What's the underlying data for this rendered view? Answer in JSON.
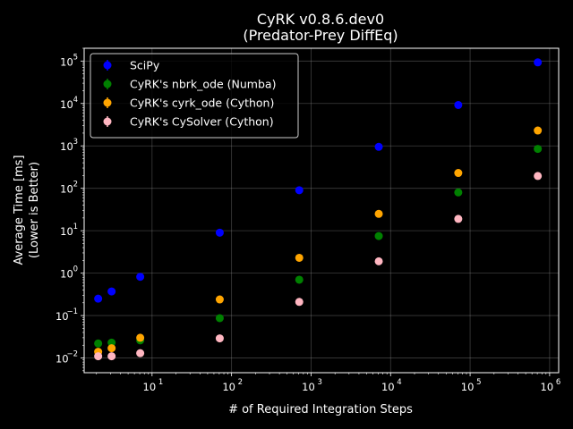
{
  "chart_data": {
    "type": "scatter",
    "title": "CyRK v0.8.6.dev0",
    "subtitle": "(Predator-Prey DiffEq)",
    "xlabel": "# of Required Integration Steps",
    "ylabel_line1": "Average Time [ms]",
    "ylabel_line2": "(Lower is Better)",
    "x_scale": "log",
    "y_scale": "log",
    "xlim": [
      1.4,
      1300000
    ],
    "ylim": [
      0.0045,
      200000
    ],
    "x_tick_exponents": [
      1,
      2,
      3,
      4,
      5,
      6
    ],
    "y_tick_exponents": [
      -2,
      -1,
      0,
      1,
      2,
      3,
      4,
      5
    ],
    "tick_base": "10",
    "grid": true,
    "legend_position": "top-left",
    "background": "#000000",
    "foreground": "#ffffff",
    "series": [
      {
        "name": "SciPy",
        "color": "#0000ff",
        "x": [
          2.1,
          3.1,
          7.1,
          71,
          710,
          7100,
          71000,
          710000
        ],
        "y": [
          0.25,
          0.37,
          0.82,
          9.0,
          90,
          950,
          9200,
          93000
        ]
      },
      {
        "name": "CyRK's nbrk_ode (Numba)",
        "color": "#008000",
        "x": [
          2.1,
          3.1,
          7.1,
          71,
          710,
          7100,
          71000,
          710000
        ],
        "y": [
          0.022,
          0.023,
          0.026,
          0.087,
          0.7,
          7.5,
          80,
          850
        ]
      },
      {
        "name": "CyRK's cyrk_ode (Cython)",
        "color": "#ffa500",
        "x": [
          2.1,
          3.1,
          7.1,
          71,
          710,
          7100,
          71000,
          710000
        ],
        "y": [
          0.014,
          0.017,
          0.03,
          0.24,
          2.3,
          25,
          230,
          2300
        ]
      },
      {
        "name": "CyRK's CySolver (Cython)",
        "color": "#ffb6c1",
        "x": [
          2.1,
          3.1,
          7.1,
          71,
          710,
          7100,
          71000,
          710000
        ],
        "y": [
          0.011,
          0.011,
          0.013,
          0.029,
          0.21,
          1.9,
          19,
          195
        ]
      }
    ]
  }
}
